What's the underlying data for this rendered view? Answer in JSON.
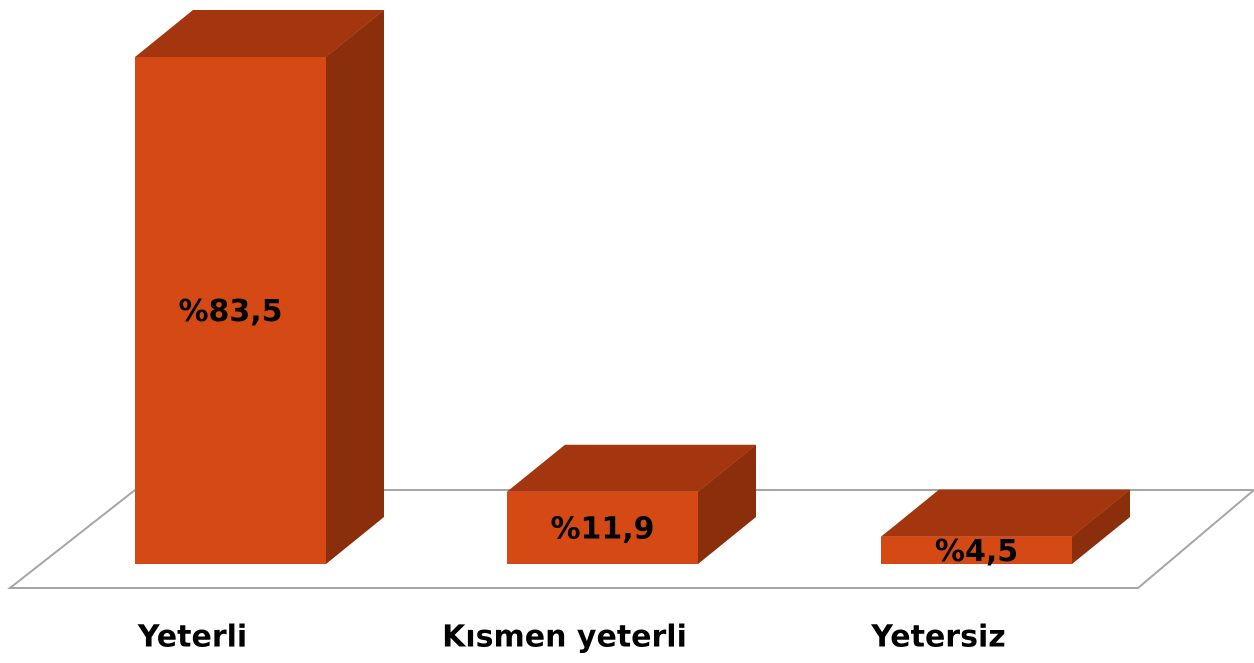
{
  "chart_data": {
    "type": "bar",
    "categories": [
      "Yeterli",
      "Kısmen yeterli",
      "Yetersiz"
    ],
    "values": [
      83.5,
      11.9,
      4.5
    ],
    "value_labels": [
      "%83,5",
      "%11,9",
      "%4,5"
    ],
    "color": "#d54a14"
  }
}
